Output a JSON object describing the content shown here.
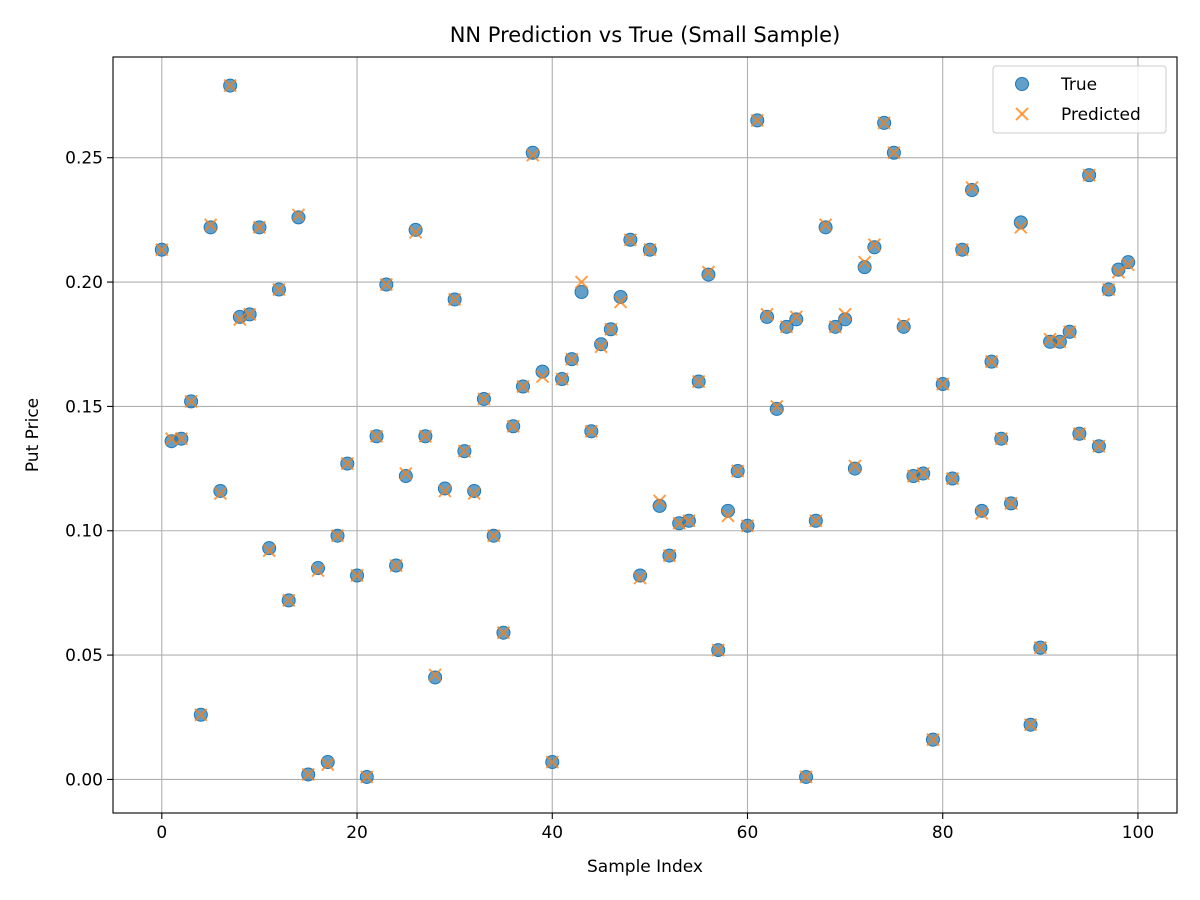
{
  "chart_data": {
    "type": "scatter",
    "title": "NN Prediction vs True (Small Sample)",
    "xlabel": "Sample Index",
    "ylabel": "Put Price",
    "xlim": [
      -5,
      104
    ],
    "ylim": [
      -0.0135,
      0.2905
    ],
    "xticks": [
      0,
      20,
      40,
      60,
      80,
      100
    ],
    "xtick_labels": [
      "0",
      "20",
      "40",
      "60",
      "80",
      "100"
    ],
    "yticks": [
      0.0,
      0.05,
      0.1,
      0.15,
      0.2,
      0.25
    ],
    "ytick_labels": [
      "0.00",
      "0.05",
      "0.10",
      "0.15",
      "0.20",
      "0.25"
    ],
    "grid": true,
    "legend_position": "top-right",
    "x": [
      0,
      1,
      2,
      3,
      4,
      5,
      6,
      7,
      8,
      9,
      10,
      11,
      12,
      13,
      14,
      15,
      16,
      17,
      18,
      19,
      20,
      21,
      22,
      23,
      24,
      25,
      26,
      27,
      28,
      29,
      30,
      31,
      32,
      33,
      34,
      35,
      36,
      37,
      38,
      39,
      40,
      41,
      42,
      43,
      44,
      45,
      46,
      47,
      48,
      49,
      50,
      51,
      52,
      53,
      54,
      55,
      56,
      57,
      58,
      59,
      60,
      61,
      62,
      63,
      64,
      65,
      66,
      67,
      68,
      69,
      70,
      71,
      72,
      73,
      74,
      75,
      76,
      77,
      78,
      79,
      80,
      81,
      82,
      83,
      84,
      85,
      86,
      87,
      88,
      89,
      90,
      91,
      92,
      93,
      94,
      95,
      96,
      97,
      98,
      99
    ],
    "series": [
      {
        "name": "True",
        "marker": "circle",
        "color": "#1f77b4",
        "values": [
          0.213,
          0.136,
          0.137,
          0.152,
          0.026,
          0.222,
          0.116,
          0.279,
          0.186,
          0.187,
          0.222,
          0.093,
          0.197,
          0.072,
          0.226,
          0.002,
          0.085,
          0.007,
          0.098,
          0.127,
          0.082,
          0.001,
          0.138,
          0.199,
          0.086,
          0.122,
          0.221,
          0.138,
          0.041,
          0.117,
          0.193,
          0.132,
          0.116,
          0.153,
          0.098,
          0.059,
          0.142,
          0.158,
          0.252,
          0.164,
          0.007,
          0.161,
          0.169,
          0.196,
          0.14,
          0.175,
          0.181,
          0.194,
          0.217,
          0.082,
          0.213,
          0.11,
          0.09,
          0.103,
          0.104,
          0.16,
          0.203,
          0.052,
          0.108,
          0.124,
          0.102,
          0.265,
          0.186,
          0.149,
          0.182,
          0.185,
          0.001,
          0.104,
          0.222,
          0.182,
          0.185,
          0.125,
          0.206,
          0.214,
          0.264,
          0.252,
          0.182,
          0.122,
          0.123,
          0.016,
          0.159,
          0.121,
          0.213,
          0.237,
          0.108,
          0.168,
          0.137,
          0.111,
          0.224,
          0.022,
          0.053,
          0.176,
          0.176,
          0.18,
          0.139,
          0.243,
          0.134,
          0.197,
          0.205,
          0.208
        ]
      },
      {
        "name": "Predicted",
        "marker": "x",
        "color": "#ff7f0e",
        "values": [
          0.213,
          0.137,
          0.137,
          0.152,
          0.026,
          0.223,
          0.115,
          0.279,
          0.185,
          0.187,
          0.222,
          0.092,
          0.197,
          0.072,
          0.227,
          0.002,
          0.084,
          0.006,
          0.098,
          0.127,
          0.082,
          0.001,
          0.138,
          0.199,
          0.086,
          0.123,
          0.22,
          0.138,
          0.042,
          0.116,
          0.193,
          0.132,
          0.115,
          0.153,
          0.098,
          0.059,
          0.142,
          0.158,
          0.251,
          0.162,
          0.007,
          0.161,
          0.169,
          0.2,
          0.14,
          0.174,
          0.181,
          0.192,
          0.217,
          0.081,
          0.213,
          0.112,
          0.09,
          0.103,
          0.104,
          0.16,
          0.204,
          0.052,
          0.106,
          0.124,
          0.102,
          0.265,
          0.187,
          0.15,
          0.182,
          0.186,
          0.001,
          0.104,
          0.223,
          0.182,
          0.187,
          0.126,
          0.208,
          0.215,
          0.264,
          0.252,
          0.183,
          0.122,
          0.123,
          0.016,
          0.159,
          0.121,
          0.213,
          0.238,
          0.107,
          0.168,
          0.137,
          0.111,
          0.222,
          0.022,
          0.053,
          0.177,
          0.176,
          0.18,
          0.139,
          0.243,
          0.134,
          0.197,
          0.204,
          0.207
        ]
      }
    ]
  }
}
